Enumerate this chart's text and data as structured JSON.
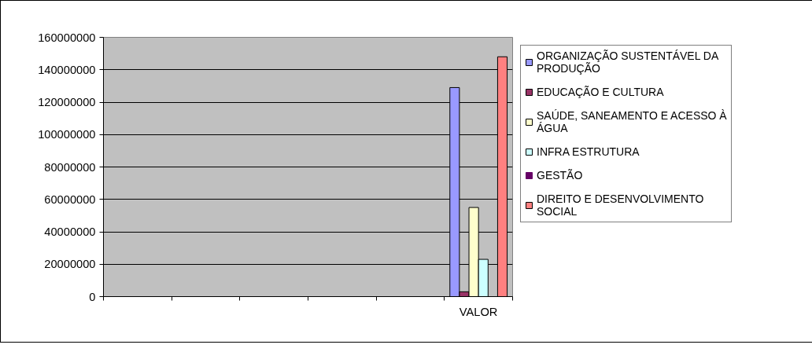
{
  "chart_data": {
    "type": "bar",
    "categories": [
      null,
      null,
      null,
      null,
      null,
      "VALOR"
    ],
    "series": [
      {
        "name": "ORGANIZAÇÃO SUSTENTÁVEL DA PRODUÇÃO",
        "color": "#9999ff",
        "values": [
          null,
          null,
          null,
          null,
          null,
          129000000
        ]
      },
      {
        "name": "EDUCAÇÃO E CULTURA",
        "color": "#993366",
        "values": [
          null,
          null,
          null,
          null,
          null,
          3000000
        ]
      },
      {
        "name": "SAÚDE, SANEAMENTO E ACESSO À ÁGUA",
        "color": "#ffffcc",
        "values": [
          null,
          null,
          null,
          null,
          null,
          55000000
        ]
      },
      {
        "name": "INFRA ESTRUTURA",
        "color": "#ccffff",
        "values": [
          null,
          null,
          null,
          null,
          null,
          23000000
        ]
      },
      {
        "name": "GESTÃO",
        "color": "#660066",
        "values": [
          null,
          null,
          null,
          null,
          null,
          0
        ]
      },
      {
        "name": "DIREITO E DESENVOLVIMENTO SOCIAL",
        "color": "#ff8080",
        "values": [
          null,
          null,
          null,
          null,
          null,
          148000000
        ]
      }
    ],
    "ylim": [
      0,
      160000000
    ],
    "yticks": [
      0,
      20000000,
      40000000,
      60000000,
      80000000,
      100000000,
      120000000,
      140000000,
      160000000
    ],
    "grid": "y",
    "legend": "right"
  }
}
